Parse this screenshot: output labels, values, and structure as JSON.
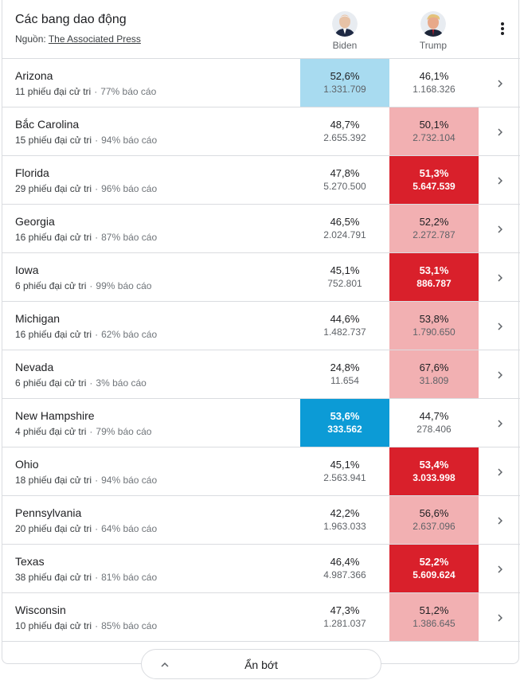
{
  "header": {
    "title": "Các bang dao động",
    "source_prefix": "Nguồn: ",
    "source_link": "The Associated Press"
  },
  "candidates": {
    "biden": {
      "name": "Biden",
      "icon": "biden-avatar"
    },
    "trump": {
      "name": "Trump",
      "icon": "trump-avatar"
    }
  },
  "rows": [
    {
      "state": "Arizona",
      "electoral": "11 phiếu đại cử tri",
      "reporting": "77% báo cáo",
      "biden_pct": "52,6%",
      "biden_votes": "1.331.709",
      "trump_pct": "46,1%",
      "trump_votes": "1.168.326",
      "biden_shade": "lightblue",
      "trump_shade": "none"
    },
    {
      "state": "Bắc Carolina",
      "electoral": "15 phiếu đại cử tri",
      "reporting": "94% báo cáo",
      "biden_pct": "48,7%",
      "biden_votes": "2.655.392",
      "trump_pct": "50,1%",
      "trump_votes": "2.732.104",
      "biden_shade": "none",
      "trump_shade": "lightred"
    },
    {
      "state": "Florida",
      "electoral": "29 phiếu đại cử tri",
      "reporting": "96% báo cáo",
      "biden_pct": "47,8%",
      "biden_votes": "5.270.500",
      "trump_pct": "51,3%",
      "trump_votes": "5.647.539",
      "biden_shade": "none",
      "trump_shade": "darkred"
    },
    {
      "state": "Georgia",
      "electoral": "16 phiếu đại cử tri",
      "reporting": "87% báo cáo",
      "biden_pct": "46,5%",
      "biden_votes": "2.024.791",
      "trump_pct": "52,2%",
      "trump_votes": "2.272.787",
      "biden_shade": "none",
      "trump_shade": "lightred"
    },
    {
      "state": "Iowa",
      "electoral": "6 phiếu đại cử tri",
      "reporting": "99% báo cáo",
      "biden_pct": "45,1%",
      "biden_votes": "752.801",
      "trump_pct": "53,1%",
      "trump_votes": "886.787",
      "biden_shade": "none",
      "trump_shade": "darkred"
    },
    {
      "state": "Michigan",
      "electoral": "16 phiếu đại cử tri",
      "reporting": "62% báo cáo",
      "biden_pct": "44,6%",
      "biden_votes": "1.482.737",
      "trump_pct": "53,8%",
      "trump_votes": "1.790.650",
      "biden_shade": "none",
      "trump_shade": "lightred"
    },
    {
      "state": "Nevada",
      "electoral": "6 phiếu đại cử tri",
      "reporting": "3% báo cáo",
      "biden_pct": "24,8%",
      "biden_votes": "11.654",
      "trump_pct": "67,6%",
      "trump_votes": "31.809",
      "biden_shade": "none",
      "trump_shade": "lightred"
    },
    {
      "state": "New Hampshire",
      "electoral": "4 phiếu đại cử tri",
      "reporting": "79% báo cáo",
      "biden_pct": "53,6%",
      "biden_votes": "333.562",
      "trump_pct": "44,7%",
      "trump_votes": "278.406",
      "biden_shade": "darkblue",
      "trump_shade": "none"
    },
    {
      "state": "Ohio",
      "electoral": "18 phiếu đại cử tri",
      "reporting": "94% báo cáo",
      "biden_pct": "45,1%",
      "biden_votes": "2.563.941",
      "trump_pct": "53,4%",
      "trump_votes": "3.033.998",
      "biden_shade": "none",
      "trump_shade": "darkred"
    },
    {
      "state": "Pennsylvania",
      "electoral": "20 phiếu đại cử tri",
      "reporting": "64% báo cáo",
      "biden_pct": "42,2%",
      "biden_votes": "1.963.033",
      "trump_pct": "56,6%",
      "trump_votes": "2.637.096",
      "biden_shade": "none",
      "trump_shade": "lightred"
    },
    {
      "state": "Texas",
      "electoral": "38 phiếu đại cử tri",
      "reporting": "81% báo cáo",
      "biden_pct": "46,4%",
      "biden_votes": "4.987.366",
      "trump_pct": "52,2%",
      "trump_votes": "5.609.624",
      "biden_shade": "none",
      "trump_shade": "darkred"
    },
    {
      "state": "Wisconsin",
      "electoral": "10 phiếu đại cử tri",
      "reporting": "85% báo cáo",
      "biden_pct": "47,3%",
      "biden_votes": "1.281.037",
      "trump_pct": "51,2%",
      "trump_votes": "1.386.645",
      "biden_shade": "none",
      "trump_shade": "lightred"
    }
  ],
  "footer": {
    "collapse_label": "Ẩn bớt",
    "collapse_icon": "chevron-up-icon"
  },
  "colors": {
    "biden_lead_light": "#a8dbf0",
    "biden_lead_strong": "#0c9bd6",
    "trump_lead_light": "#f2b0b2",
    "trump_lead_strong": "#d9202b"
  }
}
